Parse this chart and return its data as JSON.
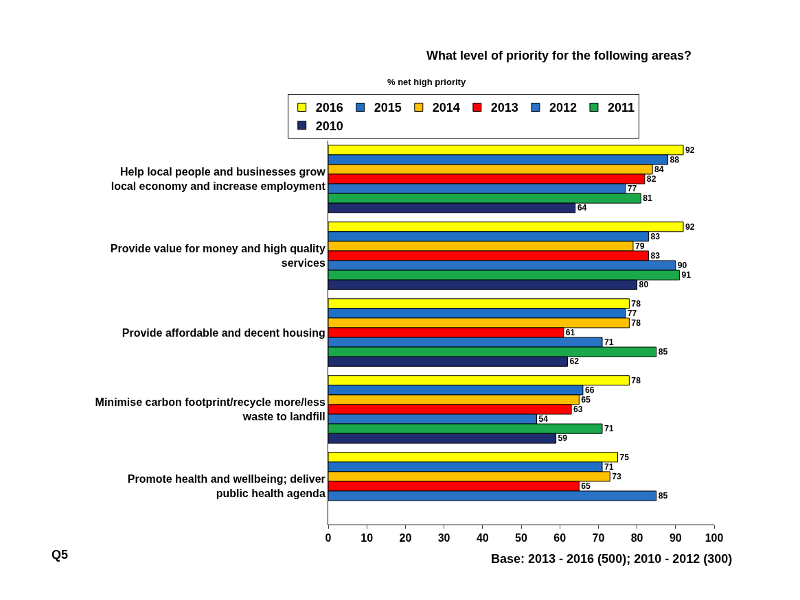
{
  "chart_data": {
    "type": "bar",
    "orientation": "horizontal",
    "title": "What level of priority for the following areas?",
    "subtitle": "% net high priority",
    "categories": [
      "Help local people and businesses grow\nlocal economy and increase employment",
      "Provide value for money and high quality\nservices",
      "Provide affordable and decent housing",
      "Minimise carbon footprint/recycle more/less\nwaste to landfill",
      "Promote health and wellbeing; deliver\npublic health agenda"
    ],
    "series": [
      {
        "name": "2016",
        "color": "#ffff00",
        "values": [
          92,
          92,
          78,
          78,
          75
        ]
      },
      {
        "name": "2015",
        "color": "#1f6fc5",
        "values": [
          88,
          83,
          77,
          66,
          71
        ]
      },
      {
        "name": "2014",
        "color": "#ffc000",
        "values": [
          84,
          79,
          78,
          65,
          73
        ]
      },
      {
        "name": "2013",
        "color": "#ff0000",
        "values": [
          82,
          83,
          61,
          63,
          65
        ]
      },
      {
        "name": "2012",
        "color": "#2a72c4",
        "values": [
          77,
          90,
          71,
          54,
          85
        ]
      },
      {
        "name": "2011",
        "color": "#1aa84a",
        "values": [
          81,
          91,
          85,
          71,
          null
        ]
      },
      {
        "name": "2010",
        "color": "#1f2d6e",
        "values": [
          64,
          80,
          62,
          59,
          null
        ]
      }
    ],
    "xlim": [
      0,
      100
    ],
    "xticks": [
      0,
      10,
      20,
      30,
      40,
      50,
      60,
      70,
      80,
      90,
      100
    ],
    "data_labels": true,
    "legend": "top",
    "annotations": [
      "Q5",
      "Base: 2013 - 2016 (500); 2010 - 2012 (300)"
    ]
  }
}
